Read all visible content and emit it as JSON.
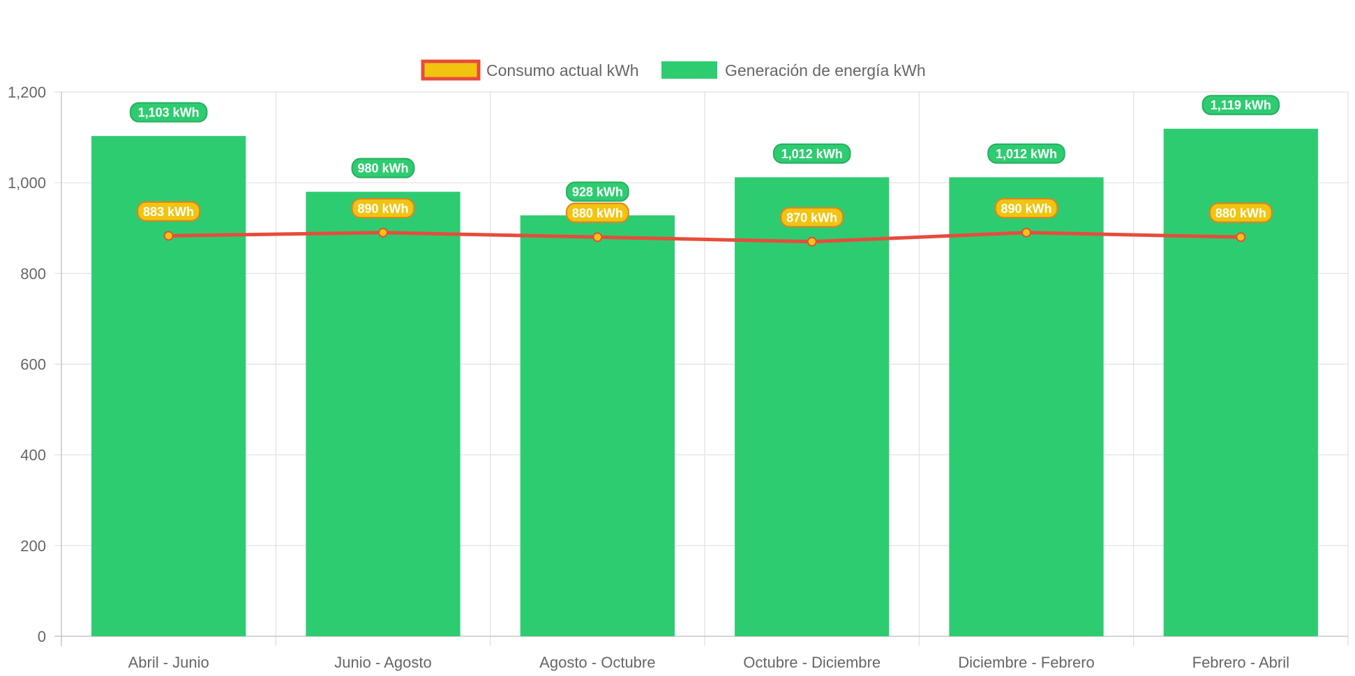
{
  "chart_data": {
    "type": "bar",
    "title": "",
    "xlabel": "",
    "ylabel": "",
    "categories": [
      "Abril - Junio",
      "Junio - Agosto",
      "Agosto - Octubre",
      "Octubre - Diciembre",
      "Diciembre - Febrero",
      "Febrero - Abril"
    ],
    "ylim": [
      0,
      1200
    ],
    "yticks": [
      0,
      200,
      400,
      600,
      800,
      1000,
      1200
    ],
    "ytick_labels": [
      "0",
      "200",
      "400",
      "600",
      "800",
      "1,000",
      "1,200"
    ],
    "grid": true,
    "legend_position": "top",
    "series": [
      {
        "name": "Consumo actual kWh",
        "type": "line",
        "color": "#e74c3c",
        "point_color": "#f1c40f",
        "values": [
          883,
          890,
          880,
          870,
          890,
          880
        ],
        "labels": [
          "883 kWh",
          "890 kWh",
          "880 kWh",
          "870 kWh",
          "890 kWh",
          "880 kWh"
        ]
      },
      {
        "name": "Generación de energía kWh",
        "type": "bar",
        "color": "#2ecc71",
        "values": [
          1103,
          980,
          928,
          1012,
          1012,
          1119
        ],
        "labels": [
          "1,103 kWh",
          "980 kWh",
          "928 kWh",
          "1,012 kWh",
          "1,012 kWh",
          "1,119 kWh"
        ]
      }
    ]
  }
}
